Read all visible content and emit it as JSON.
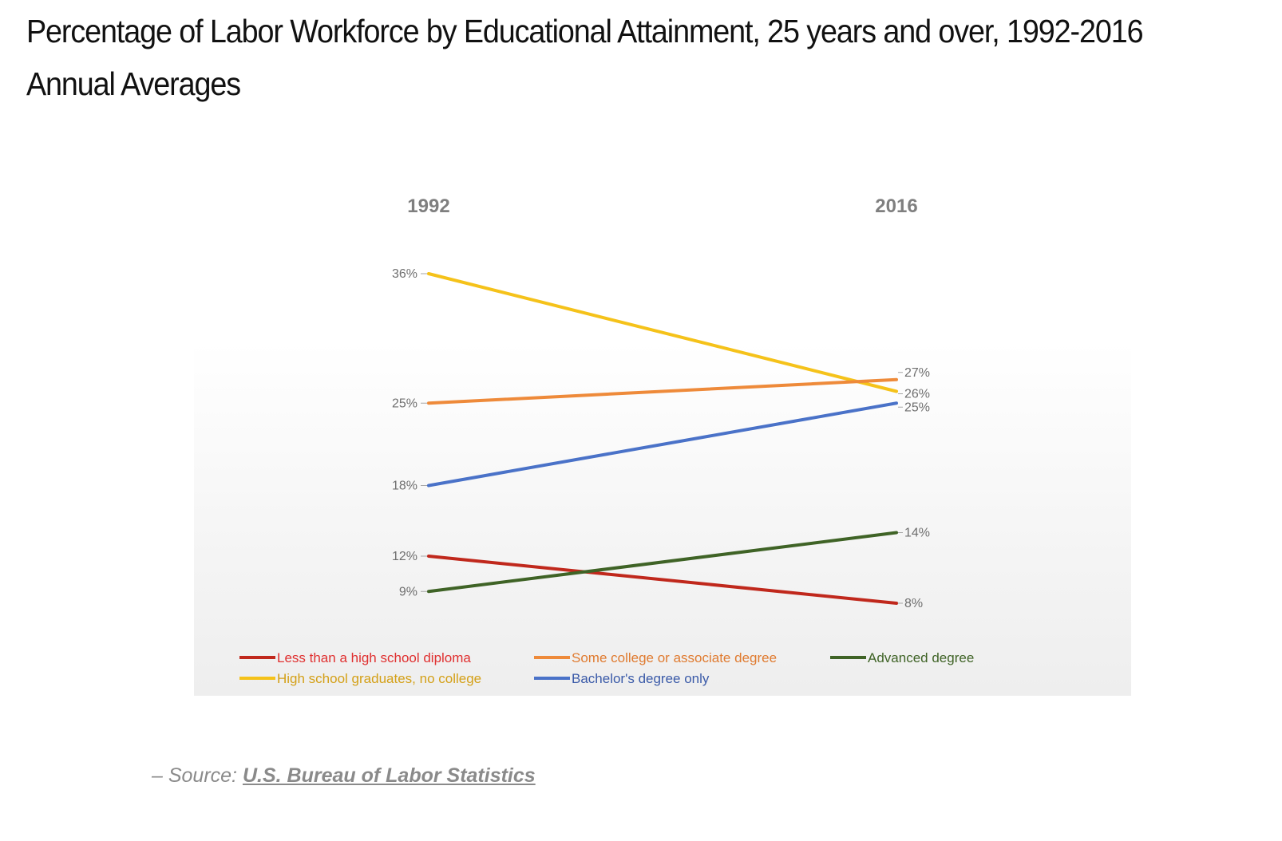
{
  "page": {
    "title": "Percentage of Labor Workforce by Educational Attainment, 25 years and over, 1992-2016 Annual Averages",
    "source_prefix": "– Source: ",
    "source_link": "U.S. Bureau of Labor Statistics"
  },
  "chart_data": {
    "type": "line",
    "x": [
      "1992",
      "2016"
    ],
    "series": [
      {
        "name": "Less than a high school diploma",
        "values": [
          12,
          8
        ],
        "labels": [
          "12%",
          "8%"
        ],
        "color": "#c0281c",
        "legend_text_color": "#e03030"
      },
      {
        "name": "High school graduates, no college",
        "values": [
          36,
          26
        ],
        "labels": [
          "36%",
          "26%"
        ],
        "color": "#f5c21a",
        "legend_text_color": "#d4a017"
      },
      {
        "name": "Some college or associate degree",
        "values": [
          25,
          27
        ],
        "labels": [
          "25%",
          "27%"
        ],
        "color": "#ee8a3a",
        "legend_text_color": "#e07b30"
      },
      {
        "name": "Bachelor's degree only",
        "values": [
          18,
          25
        ],
        "labels": [
          "18%",
          "25%"
        ],
        "color": "#4a72c8",
        "legend_text_color": "#3a5aa8"
      },
      {
        "name": "Advanced degree",
        "values": [
          9,
          14
        ],
        "labels": [
          "9%",
          "14%"
        ],
        "color": "#3f6326",
        "legend_text_color": "#3f6326"
      }
    ],
    "legend_position": "bottom",
    "grid": false
  }
}
